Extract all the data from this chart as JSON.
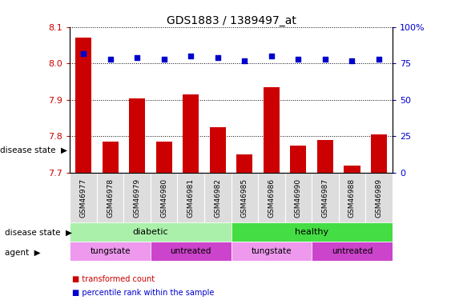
{
  "title": "GDS1883 / 1389497_at",
  "samples": [
    "GSM46977",
    "GSM46978",
    "GSM46979",
    "GSM46980",
    "GSM46981",
    "GSM46982",
    "GSM46985",
    "GSM46986",
    "GSM46990",
    "GSM46987",
    "GSM46988",
    "GSM46989"
  ],
  "bar_values": [
    8.07,
    7.785,
    7.905,
    7.785,
    7.915,
    7.825,
    7.75,
    7.935,
    7.775,
    7.79,
    7.72,
    7.805
  ],
  "percentile_values": [
    82,
    78,
    79,
    78,
    80,
    79,
    77,
    80,
    78,
    78,
    77,
    78
  ],
  "bar_color": "#cc0000",
  "dot_color": "#0000cc",
  "ylim_left": [
    7.7,
    8.1
  ],
  "ylim_right": [
    0,
    100
  ],
  "yticks_left": [
    7.7,
    7.8,
    7.9,
    8.0,
    8.1
  ],
  "yticks_right": [
    0,
    25,
    50,
    75,
    100
  ],
  "yticklabels_right": [
    "0",
    "25",
    "50",
    "75",
    "100%"
  ],
  "disease_state_groups": [
    {
      "label": "diabetic",
      "start": 0,
      "end": 6,
      "color": "#aaf0aa"
    },
    {
      "label": "healthy",
      "start": 6,
      "end": 12,
      "color": "#44dd44"
    }
  ],
  "agent_groups": [
    {
      "label": "tungstate",
      "start": 0,
      "end": 3,
      "color": "#ee99ee"
    },
    {
      "label": "untreated",
      "start": 3,
      "end": 6,
      "color": "#cc44cc"
    },
    {
      "label": "tungstate",
      "start": 6,
      "end": 9,
      "color": "#ee99ee"
    },
    {
      "label": "untreated",
      "start": 9,
      "end": 12,
      "color": "#cc44cc"
    }
  ],
  "legend_items": [
    {
      "label": "transformed count",
      "color": "#cc0000"
    },
    {
      "label": "percentile rank within the sample",
      "color": "#0000cc"
    }
  ],
  "bar_bottom": 7.7,
  "disease_state_label": "disease state",
  "agent_label": "agent"
}
